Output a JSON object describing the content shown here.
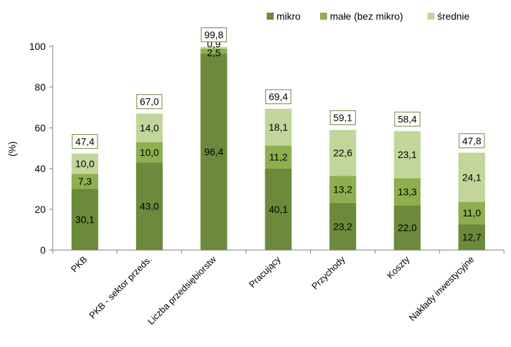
{
  "chart_data": {
    "type": "bar",
    "stacked": true,
    "title": "",
    "ylabel": "(%)",
    "xlabel": "",
    "ylim": [
      0,
      100
    ],
    "yticks": [
      0,
      20,
      40,
      60,
      80,
      100
    ],
    "grid": false,
    "legend_position": "top-right",
    "categories": [
      "PKB",
      "PKB - sektor przeds.",
      "Liczba przedsiębiorstw",
      "Pracujący",
      "Przychody",
      "Koszty",
      "Nakłady inwestycyjne"
    ],
    "series": [
      {
        "name": "mikro",
        "color": "#6b8a3c",
        "values": [
          30.1,
          43.0,
          96.4,
          40.1,
          23.2,
          22.0,
          12.7
        ],
        "labels": [
          "30,1",
          "43,0",
          "96,4",
          "40,1",
          "23,2",
          "22,0",
          "12,7"
        ]
      },
      {
        "name": "małe (bez mikro)",
        "color": "#8daf4e",
        "values": [
          7.3,
          10.0,
          2.5,
          11.2,
          13.2,
          13.3,
          11.0
        ],
        "labels": [
          "7,3",
          "10,0",
          "2,5",
          "11,2",
          "13,2",
          "13,3",
          "11,0"
        ]
      },
      {
        "name": "średnie",
        "color": "#c2d69b",
        "values": [
          10.0,
          14.0,
          0.9,
          18.1,
          22.6,
          23.1,
          24.1
        ],
        "labels": [
          "10,0",
          "14,0",
          "0,9",
          "18,1",
          "22,6",
          "23,1",
          "24,1"
        ]
      }
    ],
    "totals": [
      47.4,
      67.0,
      99.8,
      69.4,
      59.1,
      58.4,
      47.8
    ],
    "total_labels": [
      "47,4",
      "67,0",
      "99,8",
      "69,4",
      "59,1",
      "58,4",
      "47,8"
    ]
  }
}
